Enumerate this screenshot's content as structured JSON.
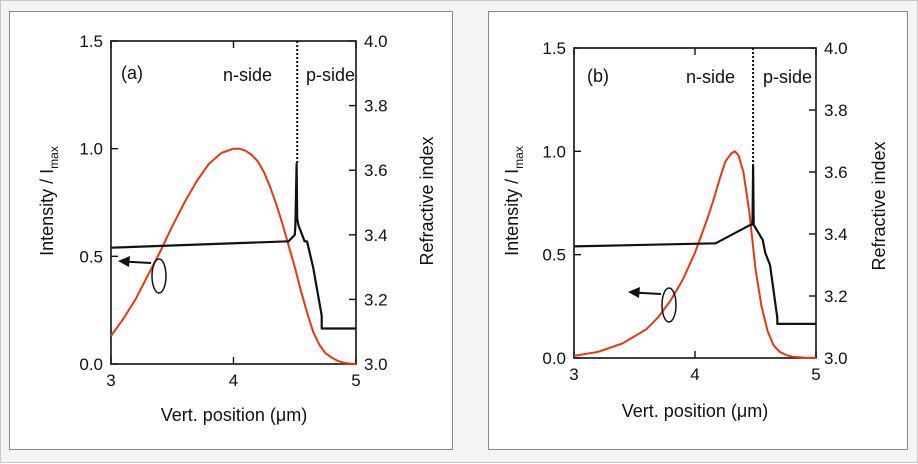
{
  "chart_data": [
    {
      "type": "line",
      "panel_label": "(a)",
      "xlabel": "Vert. position (μm)",
      "ylabel_left": "Intensity / I",
      "ylabel_left_sub": "max",
      "ylabel_right": "Refractive index",
      "xlim": [
        3,
        5
      ],
      "ylim_left": [
        0,
        1.5
      ],
      "ylim_right": [
        3.0,
        4.0
      ],
      "x_ticks": [
        "3",
        "4",
        "5"
      ],
      "y_left_ticks": [
        "0.0",
        "0.5",
        "1.0",
        "1.5"
      ],
      "y_right_ticks": [
        "3.0",
        "3.2",
        "3.4",
        "3.6",
        "3.8",
        "4.0"
      ],
      "annotations": {
        "n_side": "n-side",
        "p_side": "p-side"
      },
      "interface_x": 4.52,
      "series": [
        {
          "axis": "left",
          "color": "#e03a14",
          "x": [
            3.0,
            3.1,
            3.2,
            3.3,
            3.4,
            3.5,
            3.6,
            3.7,
            3.8,
            3.9,
            4.0,
            4.05,
            4.1,
            4.15,
            4.2,
            4.25,
            4.3,
            4.35,
            4.4,
            4.45,
            4.5,
            4.55,
            4.6,
            4.65,
            4.7,
            4.75,
            4.8,
            4.85,
            4.9,
            4.95,
            5.0
          ],
          "y": [
            0.13,
            0.21,
            0.3,
            0.41,
            0.52,
            0.64,
            0.75,
            0.85,
            0.93,
            0.98,
            1.0,
            1.0,
            0.99,
            0.97,
            0.94,
            0.89,
            0.82,
            0.74,
            0.65,
            0.55,
            0.45,
            0.34,
            0.24,
            0.15,
            0.09,
            0.05,
            0.03,
            0.015,
            0.006,
            0.002,
            0.0
          ]
        },
        {
          "axis": "right",
          "color": "#111111",
          "x": [
            3.0,
            4.45,
            4.5,
            4.505,
            4.515,
            4.52,
            4.53,
            4.58,
            4.6,
            4.65,
            4.72,
            4.72,
            4.8,
            5.0
          ],
          "y": [
            3.36,
            3.38,
            3.4,
            3.43,
            3.62,
            3.45,
            3.43,
            3.38,
            3.38,
            3.3,
            3.15,
            3.11,
            3.11,
            3.11
          ]
        }
      ]
    },
    {
      "type": "line",
      "panel_label": "(b)",
      "xlabel": "Vert. position (μm)",
      "ylabel_left": "Intensity / I",
      "ylabel_left_sub": "max",
      "ylabel_right": "Refractive index",
      "xlim": [
        3,
        5
      ],
      "ylim_left": [
        0,
        1.5
      ],
      "ylim_right": [
        3.0,
        4.0
      ],
      "x_ticks": [
        "3",
        "4",
        "5"
      ],
      "y_left_ticks": [
        "0.0",
        "0.5",
        "1.0",
        "1.5"
      ],
      "y_right_ticks": [
        "3.0",
        "3.2",
        "3.4",
        "3.6",
        "3.8",
        "4.0"
      ],
      "annotations": {
        "n_side": "n-side",
        "p_side": "p-side"
      },
      "interface_x": 4.48,
      "series": [
        {
          "axis": "left",
          "color": "#e03a14",
          "x": [
            3.0,
            3.2,
            3.4,
            3.6,
            3.7,
            3.8,
            3.9,
            4.0,
            4.1,
            4.15,
            4.2,
            4.25,
            4.3,
            4.33,
            4.36,
            4.4,
            4.45,
            4.5,
            4.55,
            4.6,
            4.65,
            4.7,
            4.75,
            4.8,
            4.9,
            5.0
          ],
          "y": [
            0.01,
            0.03,
            0.07,
            0.14,
            0.2,
            0.28,
            0.38,
            0.51,
            0.67,
            0.76,
            0.86,
            0.95,
            0.99,
            1.0,
            0.98,
            0.9,
            0.7,
            0.43,
            0.25,
            0.13,
            0.06,
            0.03,
            0.015,
            0.007,
            0.002,
            0.0
          ]
        },
        {
          "axis": "right",
          "color": "#111111",
          "x": [
            3.0,
            4.17,
            4.46,
            4.475,
            4.48,
            4.485,
            4.5,
            4.56,
            4.58,
            4.62,
            4.68,
            4.68,
            4.75,
            5.0
          ],
          "y": [
            3.36,
            3.37,
            3.43,
            3.43,
            3.62,
            3.43,
            3.42,
            3.38,
            3.34,
            3.3,
            3.13,
            3.11,
            3.11,
            3.11
          ]
        }
      ]
    }
  ]
}
